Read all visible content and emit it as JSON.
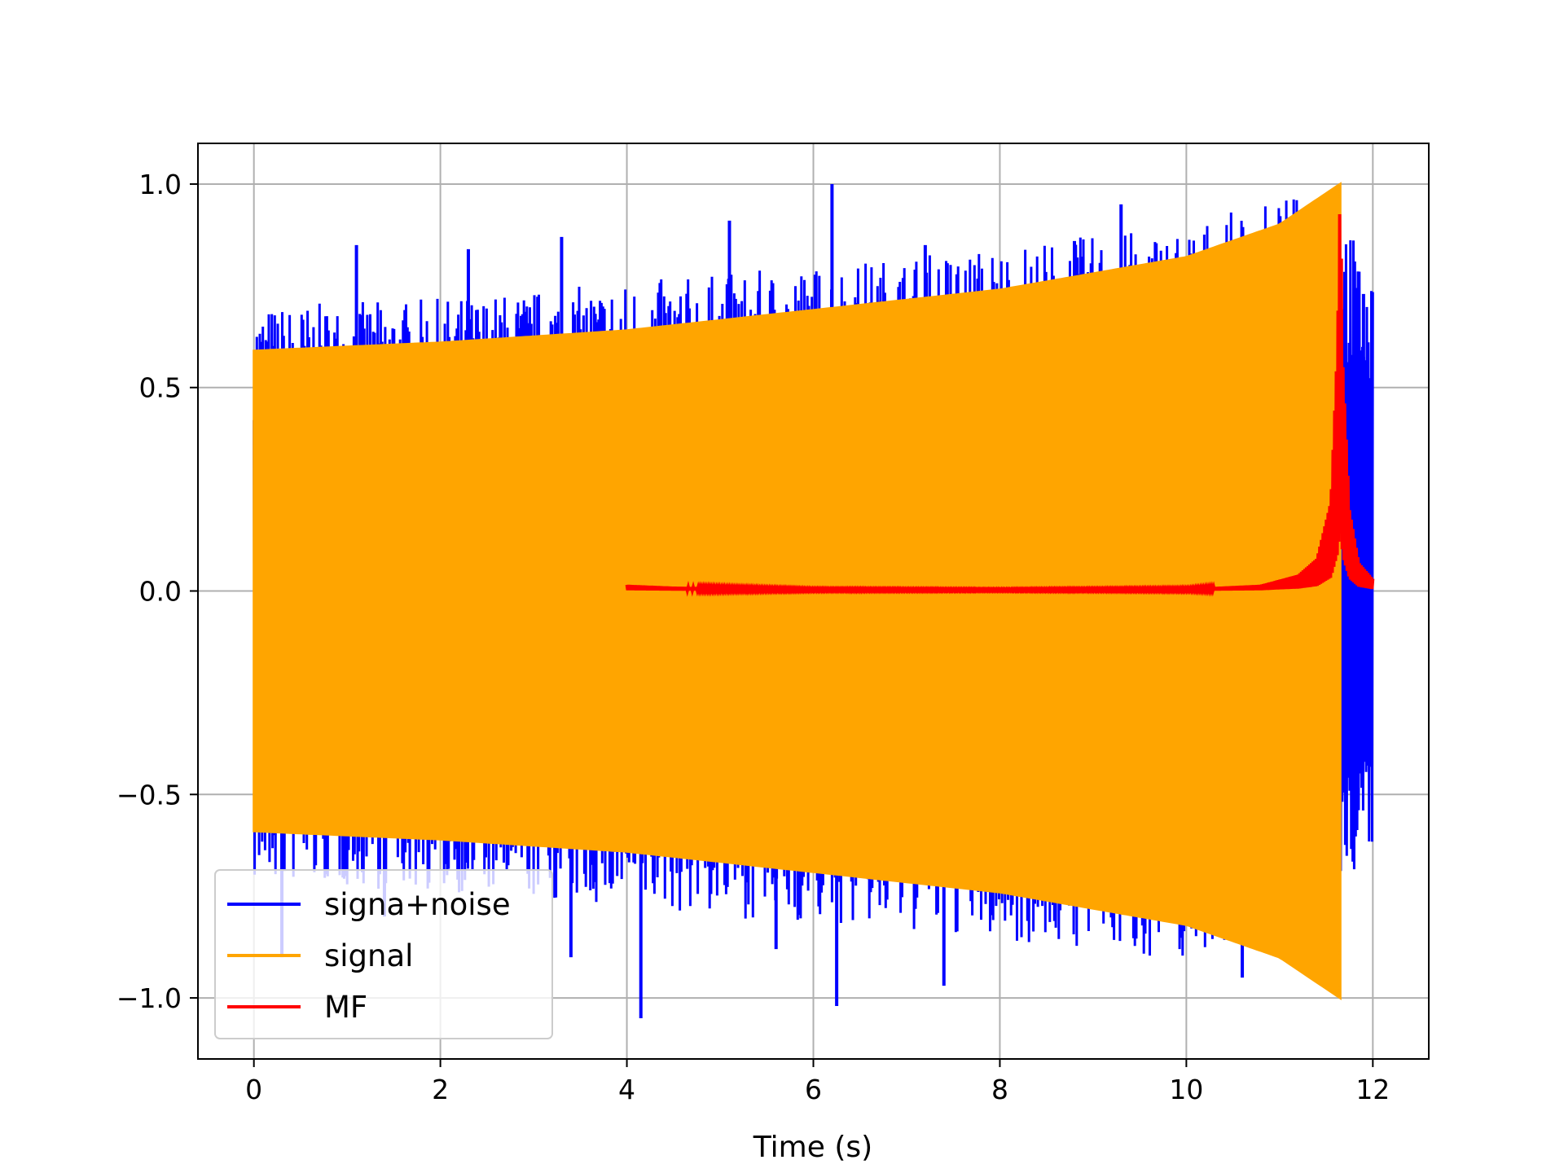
{
  "chart_data": {
    "type": "line",
    "title": "",
    "xlabel": "Time (s)",
    "ylabel": "",
    "xlim": [
      -0.6,
      12.6
    ],
    "ylim": [
      -1.15,
      1.1
    ],
    "xticks": [
      0,
      2,
      4,
      6,
      8,
      10,
      12
    ],
    "xtick_labels": [
      "0",
      "2",
      "4",
      "6",
      "8",
      "10",
      "12"
    ],
    "yticks": [
      1.0,
      0.5,
      0.0,
      -0.5,
      -1.0
    ],
    "ytick_labels": [
      "1.0",
      "0.5",
      "0.0",
      "−0.5",
      "−1.0"
    ],
    "grid": true,
    "legend_position": "lower-left",
    "series": [
      {
        "name": "signa+noise",
        "color": "#0000ff",
        "t_start": 0,
        "t_end": 12,
        "envelope_upper": [
          [
            0,
            0.7
          ],
          [
            2,
            0.72
          ],
          [
            4,
            0.76
          ],
          [
            6,
            0.8
          ],
          [
            8,
            0.85
          ],
          [
            10,
            0.9
          ],
          [
            11.6,
            1.0
          ],
          [
            12,
            0.74
          ]
        ],
        "envelope_lower": [
          [
            0,
            -0.72
          ],
          [
            2,
            -0.74
          ],
          [
            4,
            -0.78
          ],
          [
            6,
            -0.82
          ],
          [
            8,
            -0.86
          ],
          [
            10,
            -0.91
          ],
          [
            11.6,
            -0.75
          ],
          [
            12,
            -0.64
          ]
        ],
        "spikes": [
          [
            0.3,
            -0.9
          ],
          [
            1.1,
            0.85
          ],
          [
            1.4,
            -0.8
          ],
          [
            2.3,
            0.84
          ],
          [
            3.3,
            0.87
          ],
          [
            3.4,
            -0.9
          ],
          [
            4.15,
            -1.05
          ],
          [
            5.1,
            0.91
          ],
          [
            5.6,
            -0.88
          ],
          [
            6.2,
            1.0
          ],
          [
            6.25,
            -1.02
          ],
          [
            7.2,
            0.85
          ],
          [
            7.4,
            -0.97
          ],
          [
            8.8,
            0.86
          ],
          [
            9.3,
            0.95
          ],
          [
            10.6,
            -0.95
          ],
          [
            11.9,
            0.73
          ],
          [
            11.8,
            -0.56
          ]
        ]
      },
      {
        "name": "signal",
        "color": "#ffa500",
        "t_start": 0,
        "t_end": 11.65,
        "envelope": [
          [
            0,
            0.59
          ],
          [
            2,
            0.61
          ],
          [
            4,
            0.64
          ],
          [
            6,
            0.69
          ],
          [
            8,
            0.74
          ],
          [
            10,
            0.82
          ],
          [
            11,
            0.9
          ],
          [
            11.65,
            1.0
          ]
        ]
      },
      {
        "name": "MF",
        "color": "#ff0000",
        "t_start": 4,
        "t_end": 12,
        "baseline": [
          [
            4.0,
            0.015
          ],
          [
            4.5,
            0.01
          ],
          [
            6,
            0.005
          ],
          [
            8,
            0.004
          ],
          [
            10,
            0.006
          ],
          [
            10.8,
            0.015
          ],
          [
            11.2,
            0.04
          ],
          [
            11.4,
            0.08
          ],
          [
            11.55,
            0.22
          ],
          [
            11.62,
            0.6
          ],
          [
            11.65,
            1.0
          ],
          [
            11.68,
            0.55
          ],
          [
            11.75,
            0.2
          ],
          [
            11.85,
            0.07
          ],
          [
            12,
            0.03
          ]
        ]
      }
    ]
  }
}
